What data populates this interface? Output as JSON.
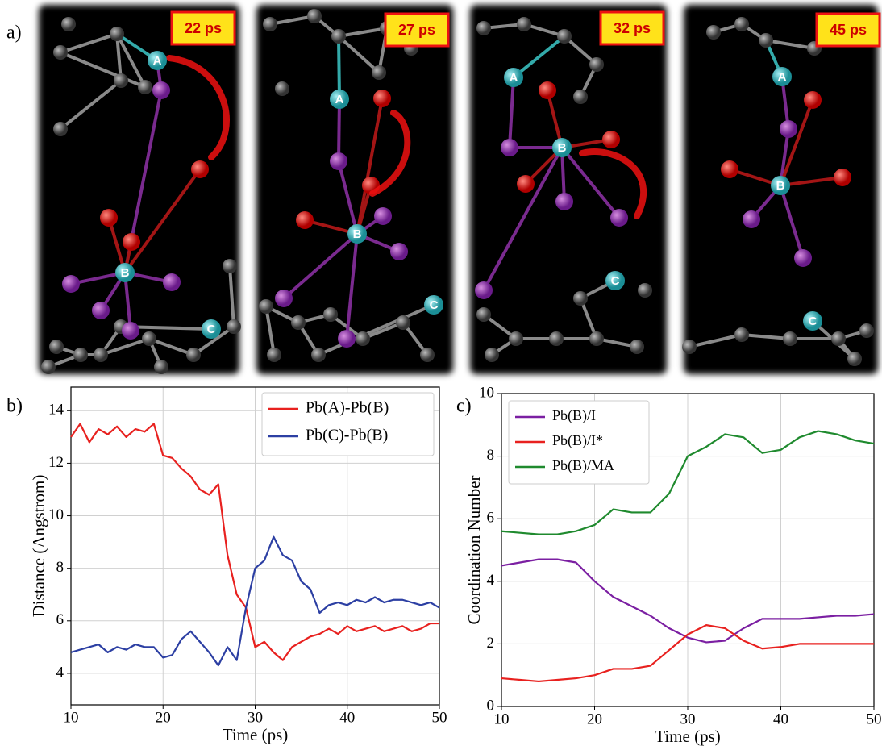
{
  "snapshots": {
    "panel_label": "a)",
    "frames": [
      {
        "time": "22 ps",
        "atoms": [
          "A",
          "B",
          "C"
        ]
      },
      {
        "time": "27 ps",
        "atoms": [
          "A",
          "B",
          "C"
        ]
      },
      {
        "time": "32 ps",
        "atoms": [
          "A",
          "B",
          "C"
        ]
      },
      {
        "time": "45 ps",
        "atoms": [
          "A",
          "B",
          "C"
        ]
      }
    ]
  },
  "chart_data": [
    {
      "type": "line",
      "panel_label": "b)",
      "xlabel": "Time (ps)",
      "ylabel": "Distance (Angstrom)",
      "x": [
        10,
        11,
        12,
        13,
        14,
        15,
        16,
        17,
        18,
        19,
        20,
        21,
        22,
        23,
        24,
        25,
        26,
        27,
        28,
        29,
        30,
        31,
        32,
        33,
        34,
        35,
        36,
        37,
        38,
        39,
        40,
        41,
        42,
        43,
        44,
        45,
        46,
        47,
        48,
        49,
        50
      ],
      "series": [
        {
          "name": "Pb(A)-Pb(B)",
          "color": "#e8211f",
          "values": [
            13.0,
            13.5,
            12.8,
            13.3,
            13.1,
            13.4,
            13.0,
            13.3,
            13.2,
            13.5,
            12.3,
            12.2,
            11.8,
            11.5,
            11.0,
            10.8,
            11.2,
            8.5,
            7.0,
            6.5,
            5.0,
            5.2,
            4.8,
            4.5,
            5.0,
            5.2,
            5.4,
            5.5,
            5.7,
            5.5,
            5.8,
            5.6,
            5.7,
            5.8,
            5.6,
            5.7,
            5.8,
            5.6,
            5.7,
            5.9,
            5.9
          ]
        },
        {
          "name": "Pb(C)-Pb(B)",
          "color": "#2c3fa3",
          "values": [
            4.8,
            4.9,
            5.0,
            5.1,
            4.8,
            5.0,
            4.9,
            5.1,
            5.0,
            5.0,
            4.6,
            4.7,
            5.3,
            5.6,
            5.2,
            4.8,
            4.3,
            5.0,
            4.5,
            6.5,
            8.0,
            8.3,
            9.2,
            8.5,
            8.3,
            7.5,
            7.2,
            6.3,
            6.6,
            6.7,
            6.6,
            6.8,
            6.7,
            6.9,
            6.7,
            6.8,
            6.8,
            6.7,
            6.6,
            6.7,
            6.5
          ]
        }
      ],
      "xlim": [
        10,
        50
      ],
      "ylim": [
        2.8,
        14.9
      ],
      "xticks": [
        10,
        20,
        30,
        40,
        50
      ],
      "yticks": [
        4,
        6,
        8,
        10,
        12,
        14
      ],
      "grid": true,
      "legend": "upper right"
    },
    {
      "type": "line",
      "panel_label": "c)",
      "xlabel": "Time (ps)",
      "ylabel": "Coordination Number",
      "x": [
        10,
        12,
        14,
        16,
        18,
        20,
        22,
        24,
        26,
        28,
        30,
        32,
        34,
        36,
        38,
        40,
        42,
        44,
        46,
        48,
        50
      ],
      "series": [
        {
          "name": "Pb(B)/I",
          "color": "#7b1fa2",
          "values": [
            4.5,
            4.6,
            4.7,
            4.7,
            4.6,
            4.0,
            3.5,
            3.2,
            2.9,
            2.5,
            2.2,
            2.05,
            2.1,
            2.5,
            2.8,
            2.8,
            2.8,
            2.85,
            2.9,
            2.9,
            2.95
          ]
        },
        {
          "name": "Pb(B)/I*",
          "color": "#e8211f",
          "values": [
            0.9,
            0.85,
            0.8,
            0.85,
            0.9,
            1.0,
            1.2,
            1.2,
            1.3,
            1.8,
            2.3,
            2.6,
            2.5,
            2.1,
            1.85,
            1.9,
            2.0,
            2.0,
            2.0,
            2.0,
            2.0
          ]
        },
        {
          "name": "Pb(B)/MA",
          "color": "#1f8a2e",
          "values": [
            5.6,
            5.55,
            5.5,
            5.5,
            5.6,
            5.8,
            6.3,
            6.2,
            6.2,
            6.8,
            8.0,
            8.3,
            8.7,
            8.6,
            8.1,
            8.2,
            8.6,
            8.8,
            8.7,
            8.5,
            8.4
          ]
        }
      ],
      "xlim": [
        10,
        50
      ],
      "ylim": [
        0,
        10
      ],
      "xticks": [
        10,
        20,
        30,
        40,
        50
      ],
      "yticks": [
        0,
        2,
        4,
        6,
        8,
        10
      ],
      "grid": true,
      "legend": "upper left"
    }
  ]
}
